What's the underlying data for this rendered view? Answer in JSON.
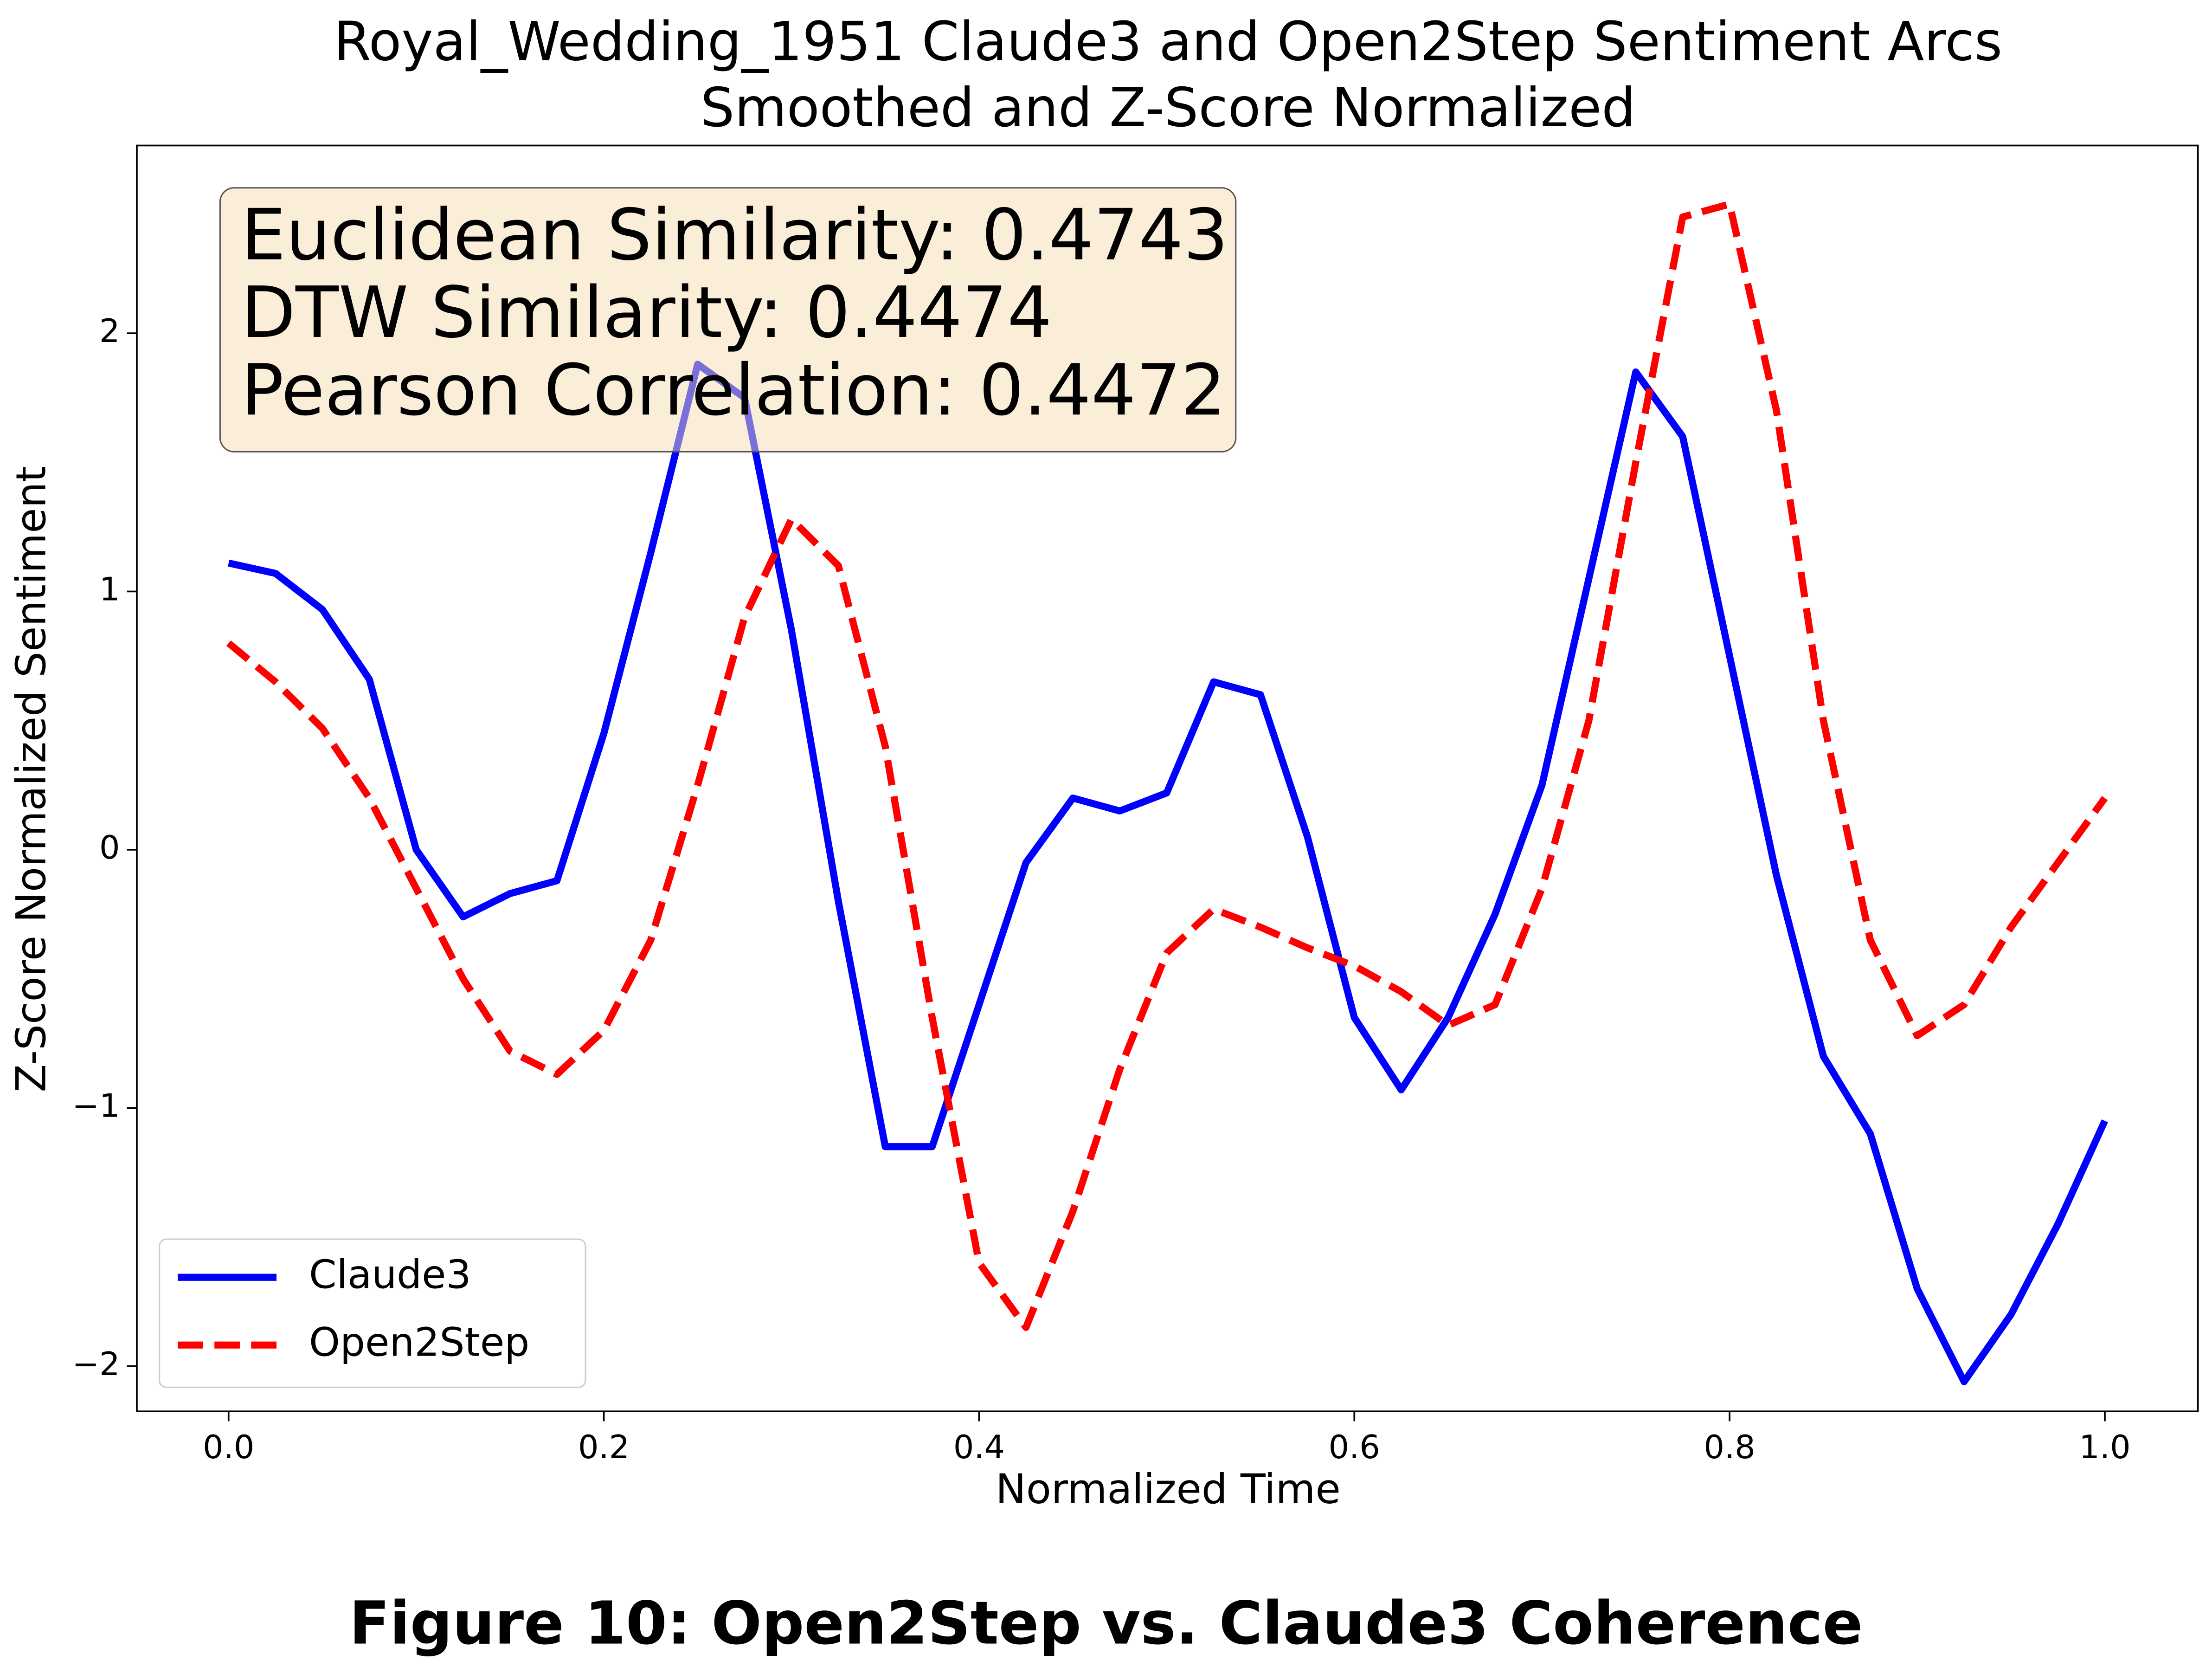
{
  "chart_data": {
    "type": "line",
    "title": [
      "Royal_Wedding_1951 Claude3 and Open2Step Sentiment Arcs",
      "Smoothed and Z-Score Normalized"
    ],
    "xlabel": "Normalized Time",
    "ylabel": "Z-Score Normalized Sentiment",
    "caption": "Figure 10: Open2Step vs. Claude3 Coherence",
    "annotations": [
      "Euclidean Similarity: 0.4743",
      "DTW Similarity: 0.4474",
      "Pearson Correlation: 0.4472"
    ],
    "legend": "lower left",
    "x": [
      0,
      0.025,
      0.05,
      0.075,
      0.1,
      0.125,
      0.15,
      0.175,
      0.2,
      0.225,
      0.25,
      0.275,
      0.3,
      0.325,
      0.35,
      0.375,
      0.4,
      0.425,
      0.45,
      0.475,
      0.5,
      0.525,
      0.55,
      0.575,
      0.6,
      0.625,
      0.65,
      0.675,
      0.7,
      0.725,
      0.75,
      0.775,
      0.8,
      0.825,
      0.85,
      0.875,
      0.9,
      0.925,
      0.95,
      0.975,
      1.0
    ],
    "series": [
      {
        "name": "Claude3",
        "color": "#0000ff",
        "linestyle": "solid",
        "values": [
          1.11,
          1.07,
          0.93,
          0.66,
          0.0,
          -0.26,
          -0.17,
          -0.12,
          0.45,
          1.15,
          1.88,
          1.75,
          0.85,
          -0.2,
          -1.15,
          -1.15,
          -0.6,
          -0.05,
          0.2,
          0.15,
          0.22,
          0.65,
          0.6,
          0.05,
          -0.65,
          -0.93,
          -0.65,
          -0.25,
          0.25,
          1.05,
          1.85,
          1.6,
          0.75,
          -0.1,
          -0.8,
          -1.1,
          -1.7,
          -2.06,
          -1.8,
          -1.45,
          -1.05
        ]
      },
      {
        "name": "Open2Step",
        "color": "#ff0000",
        "linestyle": "dashed",
        "values": [
          0.8,
          0.65,
          0.47,
          0.2,
          -0.15,
          -0.5,
          -0.78,
          -0.87,
          -0.7,
          -0.35,
          0.25,
          0.9,
          1.28,
          1.1,
          0.4,
          -0.65,
          -1.6,
          -1.85,
          -1.4,
          -0.85,
          -0.4,
          -0.23,
          -0.3,
          -0.38,
          -0.45,
          -0.55,
          -0.68,
          -0.6,
          -0.15,
          0.5,
          1.5,
          2.45,
          2.5,
          1.7,
          0.5,
          -0.35,
          -0.72,
          -0.6,
          -0.3,
          -0.05,
          0.2
        ]
      }
    ],
    "xlim": [
      -0.0489,
      1.0496
    ],
    "ylim": [
      -2.175,
      2.727
    ],
    "xticks": [
      {
        "value": 0,
        "label": "0.0"
      },
      0.2,
      0.4,
      0.6,
      0.8,
      {
        "value": 1,
        "label": "1.0"
      }
    ],
    "yticks": [
      {
        "value": -2,
        "label": "−2"
      },
      {
        "value": -1,
        "label": "−1"
      },
      0,
      1,
      2
    ],
    "grid": false
  }
}
